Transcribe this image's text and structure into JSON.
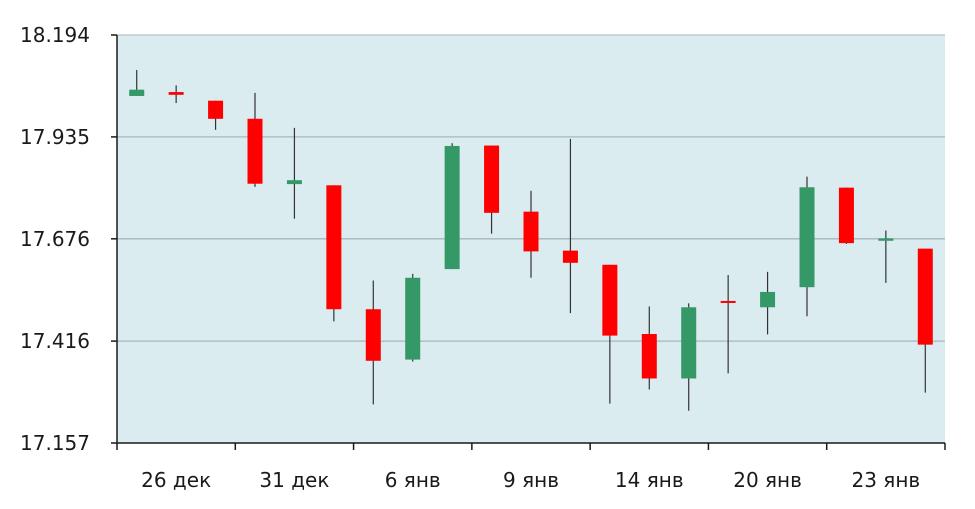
{
  "chart_data": {
    "type": "candlestick",
    "y_ticks": [
      "18.194",
      "17.935",
      "17.676",
      "17.416",
      "17.157"
    ],
    "ylim": [
      17.157,
      18.194
    ],
    "x_ticks": [
      {
        "label": "26 дек",
        "index": 0
      },
      {
        "label": "31 дек",
        "index": 3
      },
      {
        "label": "6 янв",
        "index": 6
      },
      {
        "label": "9 янв",
        "index": 9
      },
      {
        "label": "14 янв",
        "index": 12
      },
      {
        "label": "20 янв",
        "index": 15
      },
      {
        "label": "23 янв",
        "index": 18
      }
    ],
    "candles": [
      {
        "open": 18.039,
        "close": 18.055,
        "high": 18.105,
        "low": 18.039
      },
      {
        "open": 18.049,
        "close": 18.042,
        "high": 18.066,
        "low": 18.021
      },
      {
        "open": 18.027,
        "close": 17.981,
        "high": 18.027,
        "low": 17.953
      },
      {
        "open": 17.981,
        "close": 17.816,
        "high": 18.047,
        "low": 17.808
      },
      {
        "open": 17.815,
        "close": 17.825,
        "high": 17.958,
        "low": 17.727
      },
      {
        "open": 17.812,
        "close": 17.497,
        "high": 17.812,
        "low": 17.466
      },
      {
        "open": 17.497,
        "close": 17.366,
        "high": 17.57,
        "low": 17.255
      },
      {
        "open": 17.369,
        "close": 17.577,
        "high": 17.587,
        "low": 17.364
      },
      {
        "open": 17.599,
        "close": 17.912,
        "high": 17.919,
        "low": 17.599
      },
      {
        "open": 17.913,
        "close": 17.742,
        "high": 17.913,
        "low": 17.689
      },
      {
        "open": 17.745,
        "close": 17.644,
        "high": 17.798,
        "low": 17.577
      },
      {
        "open": 17.646,
        "close": 17.615,
        "high": 17.93,
        "low": 17.487
      },
      {
        "open": 17.61,
        "close": 17.43,
        "high": 17.61,
        "low": 17.257
      },
      {
        "open": 17.434,
        "close": 17.321,
        "high": 17.504,
        "low": 17.293
      },
      {
        "open": 17.321,
        "close": 17.502,
        "high": 17.512,
        "low": 17.239
      },
      {
        "open": 17.518,
        "close": 17.516,
        "high": 17.584,
        "low": 17.334
      },
      {
        "open": 17.502,
        "close": 17.541,
        "high": 17.592,
        "low": 17.433
      },
      {
        "open": 17.553,
        "close": 17.807,
        "high": 17.834,
        "low": 17.479
      },
      {
        "open": 17.806,
        "close": 17.665,
        "high": 17.806,
        "low": 17.663
      },
      {
        "open": 17.671,
        "close": 17.677,
        "high": 17.697,
        "low": 17.564
      },
      {
        "open": 17.651,
        "close": 17.407,
        "high": 17.651,
        "low": 17.285
      }
    ],
    "colors": {
      "up": "#349967",
      "down": "#fe0000",
      "plot_bg": "#dbecf0",
      "grid": "#a9b6bb",
      "axis": "#1a1a1a",
      "wick": "#333333"
    },
    "grid": true
  }
}
